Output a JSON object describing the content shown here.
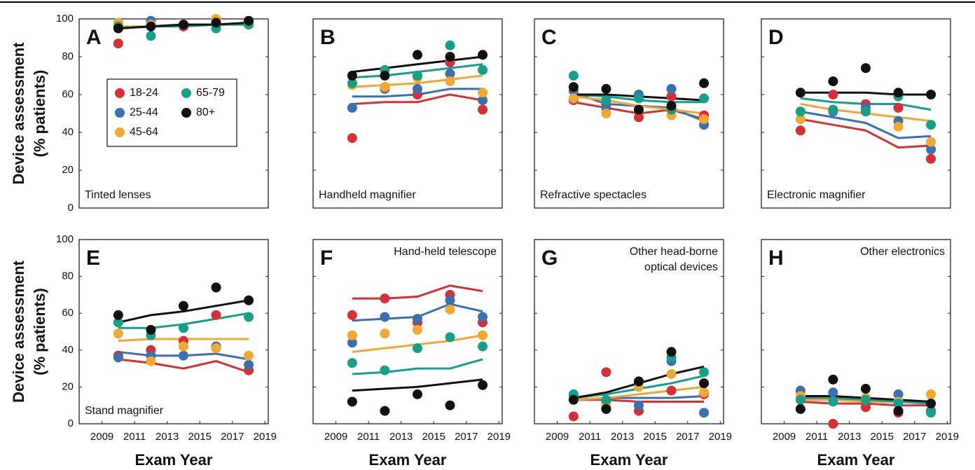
{
  "chart_data": [
    {
      "type": "scatter",
      "panel": "A",
      "annotation": [
        "Tinted lenses"
      ],
      "annotation_corner": "lower left",
      "ylabel": [
        "Device assessment",
        "(% patients)"
      ],
      "legend": true,
      "x": [
        2010,
        2012,
        2014,
        2016,
        2018
      ],
      "xlim": [
        2007.6,
        2019.2
      ],
      "ylim": [
        0,
        100
      ],
      "yticks": [
        0,
        20,
        40,
        60,
        80,
        100
      ],
      "series": [
        {
          "name": "18-24",
          "color": "#d62f35",
          "values": [
            87,
            97,
            96,
            97,
            98
          ],
          "trend": [
            95,
            96,
            97,
            97,
            98
          ]
        },
        {
          "name": "25-44",
          "color": "#3a6fb0",
          "values": [
            96,
            99,
            97,
            97,
            97
          ],
          "trend": [
            95,
            96,
            97,
            97,
            98
          ]
        },
        {
          "name": "45-64",
          "color": "#f0a830",
          "values": [
            98,
            97,
            97,
            100,
            98
          ],
          "trend": [
            96,
            96,
            97,
            97,
            98
          ]
        },
        {
          "name": "65-79",
          "color": "#15a08a",
          "values": [
            96,
            91,
            97,
            95,
            97
          ],
          "trend": [
            95,
            96,
            96,
            97,
            97
          ]
        },
        {
          "name": "80+",
          "color": "#111111",
          "values": [
            95,
            96,
            97,
            98,
            99
          ],
          "trend": [
            95,
            96,
            97,
            97,
            98
          ]
        }
      ]
    },
    {
      "type": "scatter",
      "panel": "B",
      "annotation": [
        "Handheld magnifier"
      ],
      "annotation_corner": "lower left",
      "x": [
        2010,
        2012,
        2014,
        2016,
        2018
      ],
      "xlim": [
        2007.6,
        2019.2
      ],
      "ylim": [
        0,
        100
      ],
      "yticks": [
        0,
        20,
        40,
        60,
        80,
        100
      ],
      "series": [
        {
          "color": "#d62f35",
          "values": [
            37,
            64,
            60,
            77,
            52
          ],
          "trend": [
            55,
            56,
            56,
            60,
            57
          ]
        },
        {
          "color": "#3a6fb0",
          "values": [
            53,
            63,
            63,
            71,
            57
          ],
          "trend": [
            59,
            59,
            60,
            63,
            63
          ]
        },
        {
          "color": "#f0a830",
          "values": [
            65,
            64,
            69,
            67,
            61
          ],
          "trend": [
            64,
            65,
            66,
            68,
            70
          ]
        },
        {
          "color": "#15a08a",
          "values": [
            66,
            73,
            70,
            86,
            73
          ],
          "trend": [
            69,
            70,
            72,
            74,
            76
          ]
        },
        {
          "color": "#111111",
          "values": [
            70,
            70,
            81,
            80,
            81
          ],
          "trend": [
            72,
            74,
            76,
            78,
            80
          ]
        }
      ]
    },
    {
      "type": "scatter",
      "panel": "C",
      "annotation": [
        "Refractive spectacles"
      ],
      "annotation_corner": "lower left",
      "x": [
        2010,
        2012,
        2014,
        2016,
        2018
      ],
      "xlim": [
        2007.6,
        2019.2
      ],
      "ylim": [
        0,
        100
      ],
      "yticks": [
        0,
        20,
        40,
        60,
        80,
        100
      ],
      "series": [
        {
          "color": "#d62f35",
          "values": [
            57,
            55,
            48,
            59,
            49
          ],
          "trend": [
            56,
            53,
            50,
            52,
            47
          ]
        },
        {
          "color": "#3a6fb0",
          "values": [
            62,
            53,
            60,
            63,
            44
          ],
          "trend": [
            61,
            55,
            54,
            53,
            46
          ]
        },
        {
          "color": "#f0a830",
          "values": [
            58,
            50,
            52,
            49,
            47
          ],
          "trend": [
            59,
            57,
            54,
            52,
            50
          ]
        },
        {
          "color": "#15a08a",
          "values": [
            70,
            57,
            58,
            52,
            58
          ],
          "trend": [
            60,
            59,
            57,
            56,
            56
          ]
        },
        {
          "color": "#111111",
          "values": [
            64,
            63,
            52,
            54,
            66
          ],
          "trend": [
            60,
            60,
            59,
            58,
            57
          ]
        }
      ]
    },
    {
      "type": "scatter",
      "panel": "D",
      "annotation": [
        "Electronic magnifier"
      ],
      "annotation_corner": "lower left",
      "x": [
        2010,
        2012,
        2014,
        2016,
        2018
      ],
      "xlim": [
        2007.6,
        2019.2
      ],
      "ylim": [
        0,
        100
      ],
      "yticks": [
        0,
        20,
        40,
        60,
        80,
        100
      ],
      "series": [
        {
          "color": "#d62f35",
          "values": [
            41,
            60,
            55,
            53,
            26
          ],
          "trend": [
            47,
            44,
            41,
            32,
            33
          ]
        },
        {
          "color": "#3a6fb0",
          "values": [
            51,
            51,
            53,
            46,
            31
          ],
          "trend": [
            51,
            48,
            45,
            37,
            38
          ]
        },
        {
          "color": "#f0a830",
          "values": [
            47,
            52,
            51,
            43,
            35
          ],
          "trend": [
            55,
            52,
            50,
            48,
            46
          ]
        },
        {
          "color": "#15a08a",
          "values": [
            51,
            52,
            51,
            59,
            44
          ],
          "trend": [
            58,
            56,
            55,
            55,
            52
          ]
        },
        {
          "color": "#111111",
          "values": [
            61,
            67,
            74,
            61,
            60
          ],
          "trend": [
            61,
            61,
            61,
            60,
            60
          ]
        }
      ]
    },
    {
      "type": "scatter",
      "panel": "E",
      "annotation": [
        "Stand magnifier"
      ],
      "annotation_corner": "lower left",
      "ylabel": [
        "Device assessment",
        "(% patients)"
      ],
      "xlabel": "Exam Year",
      "x": [
        2010,
        2012,
        2014,
        2016,
        2018
      ],
      "xlim": [
        2007.6,
        2019.2
      ],
      "xticks": [
        2009,
        2011,
        2013,
        2015,
        2017,
        2019
      ],
      "ylim": [
        0,
        100
      ],
      "yticks": [
        0,
        20,
        40,
        60,
        80,
        100
      ],
      "series": [
        {
          "color": "#d62f35",
          "values": [
            37,
            40,
            45,
            59,
            29
          ],
          "trend": [
            35,
            33,
            30,
            34,
            28
          ]
        },
        {
          "color": "#3a6fb0",
          "values": [
            36,
            37,
            37,
            42,
            32
          ],
          "trend": [
            39,
            37,
            37,
            38,
            35
          ]
        },
        {
          "color": "#f0a830",
          "values": [
            49,
            34,
            42,
            41,
            37
          ],
          "trend": [
            45,
            46,
            46,
            46,
            46
          ]
        },
        {
          "color": "#15a08a",
          "values": [
            55,
            48,
            52,
            74,
            58
          ],
          "trend": [
            52,
            52,
            54,
            57,
            60
          ]
        },
        {
          "color": "#111111",
          "values": [
            59,
            51,
            64,
            74,
            67
          ],
          "trend": [
            55,
            59,
            61,
            64,
            67
          ]
        }
      ]
    },
    {
      "type": "scatter",
      "panel": "F",
      "annotation": [
        "Hand-held telescope"
      ],
      "annotation_corner": "upper right",
      "xlabel": "Exam Year",
      "x": [
        2010,
        2012,
        2014,
        2016,
        2018
      ],
      "xlim": [
        2007.6,
        2019.2
      ],
      "xticks": [
        2009,
        2011,
        2013,
        2015,
        2017,
        2019
      ],
      "ylim": [
        0,
        100
      ],
      "yticks": [
        0,
        20,
        40,
        60,
        80,
        100
      ],
      "series": [
        {
          "color": "#d62f35",
          "values": [
            59,
            68,
            55,
            70,
            55
          ],
          "trend": [
            68,
            68,
            69,
            75,
            72
          ]
        },
        {
          "color": "#3a6fb0",
          "values": [
            44,
            58,
            57,
            67,
            58
          ],
          "trend": [
            56,
            57,
            58,
            65,
            61
          ]
        },
        {
          "color": "#f0a830",
          "values": [
            48,
            49,
            51,
            62,
            48
          ],
          "trend": [
            39,
            41,
            43,
            45,
            48
          ]
        },
        {
          "color": "#15a08a",
          "values": [
            33,
            29,
            41,
            47,
            42
          ],
          "trend": [
            27,
            28,
            30,
            30,
            35
          ]
        },
        {
          "color": "#111111",
          "values": [
            12,
            7,
            16,
            10,
            21
          ],
          "trend": [
            18,
            19,
            20,
            22,
            24
          ]
        }
      ]
    },
    {
      "type": "scatter",
      "panel": "G",
      "annotation": [
        "Other head-borne",
        "optical devices"
      ],
      "annotation_corner": "upper right",
      "xlabel": "Exam Year",
      "x": [
        2010,
        2012,
        2014,
        2016,
        2018
      ],
      "xlim": [
        2007.6,
        2019.2
      ],
      "xticks": [
        2009,
        2011,
        2013,
        2015,
        2017,
        2019
      ],
      "ylim": [
        0,
        100
      ],
      "yticks": [
        0,
        20,
        40,
        60,
        80,
        100
      ],
      "series": [
        {
          "color": "#d62f35",
          "values": [
            4,
            28,
            7,
            18,
            16
          ],
          "trend": [
            13,
            13,
            12,
            12,
            12
          ]
        },
        {
          "color": "#3a6fb0",
          "values": [
            15,
            12,
            10,
            34,
            6
          ],
          "trend": [
            13,
            14,
            14,
            14,
            15
          ]
        },
        {
          "color": "#f0a830",
          "values": [
            16,
            10,
            20,
            27,
            17
          ],
          "trend": [
            13,
            14,
            16,
            18,
            20
          ]
        },
        {
          "color": "#15a08a",
          "values": [
            16,
            13,
            23,
            36,
            28
          ],
          "trend": [
            14,
            16,
            19,
            22,
            26
          ]
        },
        {
          "color": "#111111",
          "values": [
            13,
            8,
            23,
            39,
            22
          ],
          "trend": [
            14,
            17,
            22,
            27,
            31
          ]
        }
      ]
    },
    {
      "type": "scatter",
      "panel": "H",
      "annotation": [
        "Other electronics"
      ],
      "annotation_corner": "upper right",
      "xlabel": "Exam Year",
      "x": [
        2010,
        2012,
        2014,
        2016,
        2018
      ],
      "xlim": [
        2007.6,
        2019.2
      ],
      "xticks": [
        2009,
        2011,
        2013,
        2015,
        2017,
        2019
      ],
      "ylim": [
        0,
        100
      ],
      "yticks": [
        0,
        20,
        40,
        60,
        80,
        100
      ],
      "series": [
        {
          "color": "#d62f35",
          "values": [
            13,
            0,
            9,
            6,
            7
          ],
          "trend": [
            12,
            11,
            11,
            10,
            10
          ]
        },
        {
          "color": "#3a6fb0",
          "values": [
            18,
            17,
            14,
            16,
            7
          ],
          "trend": [
            14,
            14,
            13,
            12,
            11
          ]
        },
        {
          "color": "#f0a830",
          "values": [
            15,
            12,
            14,
            12,
            16
          ],
          "trend": [
            13,
            13,
            12,
            12,
            12
          ]
        },
        {
          "color": "#15a08a",
          "values": [
            13,
            12,
            13,
            11,
            6
          ],
          "trend": [
            15,
            14,
            13,
            12,
            11
          ]
        },
        {
          "color": "#111111",
          "values": [
            8,
            24,
            19,
            7,
            11
          ],
          "trend": [
            15,
            15,
            14,
            13,
            12
          ]
        }
      ]
    }
  ]
}
